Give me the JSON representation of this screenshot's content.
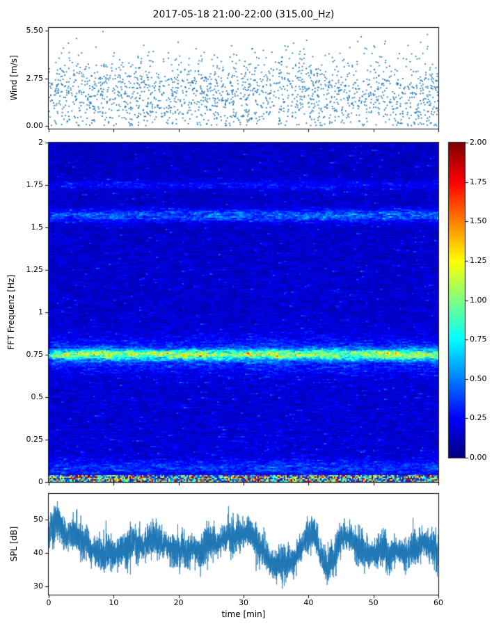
{
  "title": "2017-05-18 21:00-22:00 (315.00_Hz)",
  "chart_data": [
    {
      "type": "scatter",
      "name": "wind-speed",
      "ylabel": "Wind [m/s]",
      "xlim": [
        0,
        60
      ],
      "ylim": [
        -0.15,
        5.65
      ],
      "ytick_values": [
        0,
        2.75,
        5.5
      ],
      "ytick_labels": [
        "0.00",
        "2.75",
        "5.50"
      ],
      "xtick_values": [
        0,
        10,
        20,
        30,
        40,
        50,
        60
      ],
      "marker_color": "#1f77b4",
      "n_points": 1900,
      "distribution": {
        "mean": 1.85,
        "sd": 1.15,
        "min": 0.03,
        "max": 5.45
      },
      "summary": "Wind speed scatter over 60 minutes; dense cloud between 0.5 and 3.5 m/s, sparse points up to 5.5 m/s, roughly uniform in time"
    },
    {
      "type": "heatmap",
      "name": "spectrogram",
      "ylabel": "FFT Frequenz [Hz]",
      "xlim": [
        0,
        60
      ],
      "ylim": [
        0,
        2
      ],
      "ytick_values": [
        0,
        0.25,
        0.5,
        0.75,
        1,
        1.25,
        1.5,
        1.75,
        2
      ],
      "ytick_labels": [
        "0",
        "0.25",
        "0.5",
        "0.75",
        "1",
        "1.25",
        "1.5",
        "1.75",
        "2"
      ],
      "colormap": "jet",
      "clim": [
        0,
        2
      ],
      "background_level": 0.15,
      "bands": [
        {
          "freq": 0.75,
          "width": 0.02,
          "amplitude": 0.8,
          "note": "strong persistent band with green/yellow/orange patches"
        },
        {
          "freq": 0.75,
          "width": 0.065,
          "amplitude": 0.28,
          "note": "broad elevated skirt around 0.75 Hz"
        },
        {
          "freq": 1.57,
          "width": 0.025,
          "amplitude": 0.38,
          "note": "moderate intermittent cyan band"
        },
        {
          "freq": 1.75,
          "width": 0.02,
          "amplitude": 0.14,
          "note": "faint band"
        },
        {
          "freq": 0.085,
          "width": 0.03,
          "amplitude": 0.2,
          "note": "weak elevation near bottom"
        }
      ],
      "bottom_band": {
        "freq_below": 0.045,
        "level_range": [
          0.3,
          2.0
        ],
        "note": "very strong band at lowest frequencies with yellow and red hotspots"
      },
      "colorbar": {
        "tick_values": [
          0,
          0.25,
          0.5,
          0.75,
          1,
          1.25,
          1.5,
          1.75,
          2
        ],
        "tick_labels": [
          "0.00",
          "0.25",
          "0.50",
          "0.75",
          "1.00",
          "1.25",
          "1.50",
          "1.75",
          "2.00"
        ]
      }
    },
    {
      "type": "line",
      "name": "spl",
      "ylabel": "SPL [dB]",
      "xlabel": "time [min]",
      "xlim": [
        0,
        60
      ],
      "ylim": [
        27.5,
        57.7
      ],
      "ytick_values": [
        30,
        40,
        50
      ],
      "ytick_labels": [
        "30",
        "40",
        "50"
      ],
      "xtick_values": [
        0,
        10,
        20,
        30,
        40,
        50,
        60
      ],
      "xtick_labels": [
        "0",
        "10",
        "20",
        "30",
        "40",
        "50",
        "60"
      ],
      "line_color": "#1f77b4",
      "baseline_db": 43,
      "noise_sd_db": 2.1,
      "visible_range_db": [
        30,
        54
      ],
      "dips": [
        {
          "t_min": 34,
          "depth_db": 4,
          "width_min": 2.2
        },
        {
          "t_min": 37.5,
          "depth_db": 4,
          "width_min": 1.2
        },
        {
          "t_min": 43,
          "depth_db": 9,
          "width_min": 1.1
        }
      ],
      "start_peak": {
        "t_min": 0.8,
        "boost_db": 2.5
      },
      "summary": "Noisy sound pressure level trace around 40-47 dB with deep dip to ~31 dB near 43 min and shallower dips near 34-38 min"
    }
  ]
}
